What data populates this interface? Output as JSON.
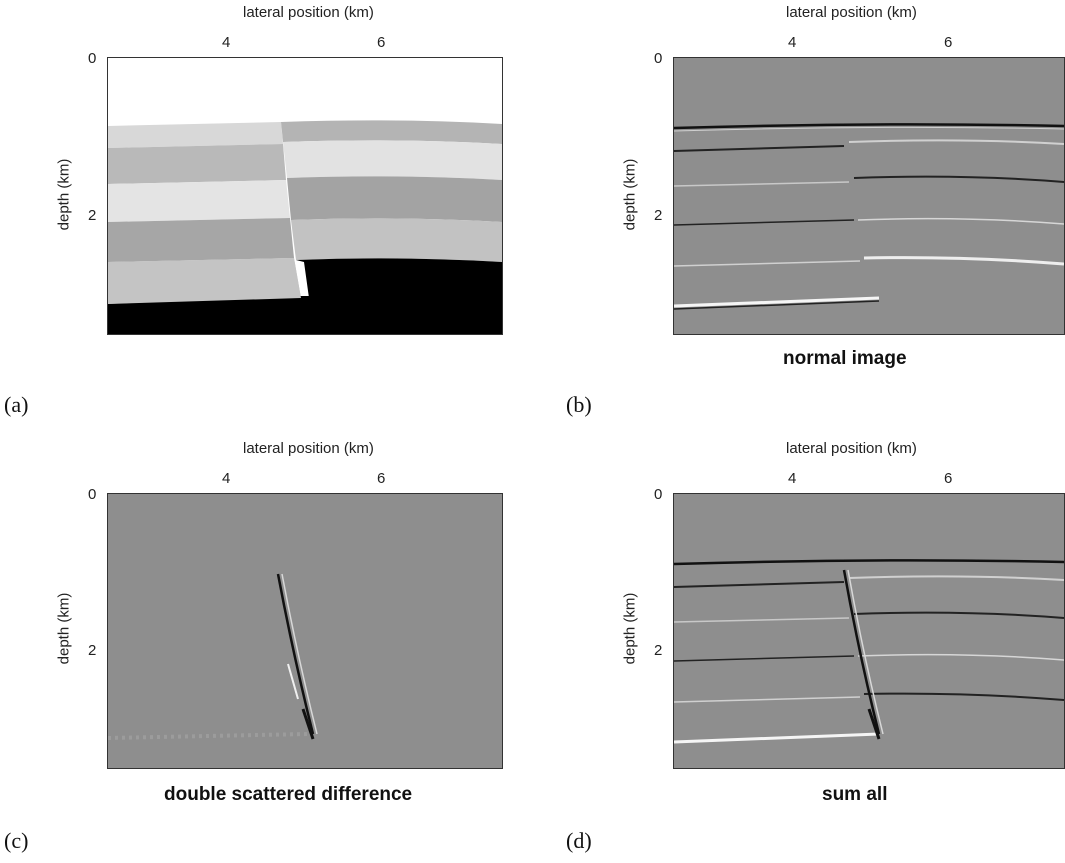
{
  "figure": {
    "panels": [
      {
        "id": "a",
        "letter": "(a)",
        "caption": "",
        "xlabel": "lateral position (km)",
        "ylabel": "depth (km)",
        "xticks": [
          "4",
          "6"
        ],
        "yticks": [
          "0",
          "2"
        ],
        "kind": "velocity-model"
      },
      {
        "id": "b",
        "letter": "(b)",
        "caption": "normal image",
        "xlabel": "lateral position (km)",
        "ylabel": "depth (km)",
        "xticks": [
          "4",
          "6"
        ],
        "yticks": [
          "0",
          "2"
        ],
        "kind": "reflectors"
      },
      {
        "id": "c",
        "letter": "(c)",
        "caption": "double scattered difference",
        "xlabel": "lateral position (km)",
        "ylabel": "depth (km)",
        "xticks": [
          "4",
          "6"
        ],
        "yticks": [
          "0",
          "2"
        ],
        "kind": "fault"
      },
      {
        "id": "d",
        "letter": "(d)",
        "caption": "sum all",
        "xlabel": "lateral position (km)",
        "ylabel": "depth (km)",
        "xticks": [
          "4",
          "6"
        ],
        "yticks": [
          "0",
          "2"
        ],
        "kind": "sum"
      }
    ]
  }
}
